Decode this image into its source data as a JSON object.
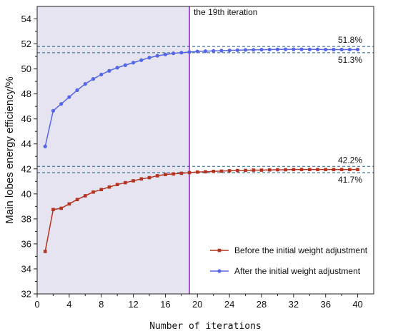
{
  "chart_data": {
    "type": "line",
    "xlabel": "Number of iterations",
    "ylabel": "Main lobes energy efficiency/%",
    "xlim": [
      0,
      42
    ],
    "ylim": [
      32,
      55
    ],
    "xticks": [
      0,
      4,
      8,
      12,
      16,
      20,
      24,
      28,
      32,
      36,
      40
    ],
    "yticks": [
      32,
      34,
      36,
      38,
      40,
      42,
      44,
      46,
      48,
      50,
      52,
      54
    ],
    "grid": false,
    "legend_position": "bottom-right",
    "shaded_region": {
      "x_from": 0,
      "x_to": 19,
      "color": "#e6e4f0"
    },
    "vertical_marker": {
      "x": 19,
      "label": "the 19th iteration",
      "color": "#9b1fd6"
    },
    "reference_lines": [
      {
        "y": 51.8,
        "label": "51.8%",
        "color": "#1f5f8b"
      },
      {
        "y": 51.3,
        "label": "51.3%",
        "color": "#1f5f8b"
      },
      {
        "y": 42.2,
        "label": "42.2%",
        "color": "#1f5f8b"
      },
      {
        "y": 41.7,
        "label": "41.7%",
        "color": "#1f5f8b"
      }
    ],
    "series": [
      {
        "name": "Before the initial weight adjustment",
        "color": "#b5331f",
        "marker": "square",
        "x": [
          1,
          2,
          3,
          4,
          5,
          6,
          7,
          8,
          9,
          10,
          11,
          12,
          13,
          14,
          15,
          16,
          17,
          18,
          19,
          20,
          21,
          22,
          23,
          24,
          25,
          26,
          27,
          28,
          29,
          30,
          31,
          32,
          33,
          34,
          35,
          36,
          37,
          38,
          39,
          40
        ],
        "values": [
          35.4,
          38.75,
          38.85,
          39.2,
          39.55,
          39.85,
          40.15,
          40.35,
          40.55,
          40.75,
          40.9,
          41.05,
          41.2,
          41.3,
          41.45,
          41.55,
          41.6,
          41.65,
          41.7,
          41.75,
          41.77,
          41.8,
          41.82,
          41.85,
          41.87,
          41.88,
          41.9,
          41.9,
          41.92,
          41.93,
          41.93,
          41.95,
          41.95,
          41.95,
          41.95,
          41.95,
          41.95,
          41.95,
          41.95,
          41.95
        ]
      },
      {
        "name": "After the initial weight adjustment",
        "color": "#5566e8",
        "marker": "circle",
        "x": [
          1,
          2,
          3,
          4,
          5,
          6,
          7,
          8,
          9,
          10,
          11,
          12,
          13,
          14,
          15,
          16,
          17,
          18,
          19,
          20,
          21,
          22,
          23,
          24,
          25,
          26,
          27,
          28,
          29,
          30,
          31,
          32,
          33,
          34,
          35,
          36,
          37,
          38,
          39,
          40
        ],
        "values": [
          43.8,
          46.65,
          47.2,
          47.75,
          48.3,
          48.8,
          49.2,
          49.55,
          49.85,
          50.1,
          50.3,
          50.5,
          50.7,
          50.9,
          51.05,
          51.15,
          51.25,
          51.3,
          51.35,
          51.4,
          51.42,
          51.44,
          51.46,
          51.48,
          51.5,
          51.52,
          51.53,
          51.54,
          51.55,
          51.56,
          51.57,
          51.57,
          51.57,
          51.56,
          51.56,
          51.55,
          51.55,
          51.55,
          51.55,
          51.55
        ]
      }
    ]
  }
}
